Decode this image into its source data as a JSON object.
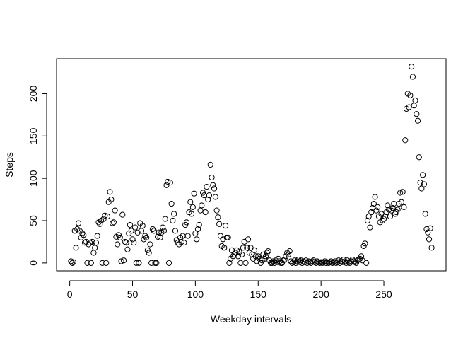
{
  "chart_data": {
    "type": "scatter",
    "xlabel": "Weekday intervals",
    "ylabel": "Steps",
    "color": "#000000",
    "x": [
      1,
      2,
      3,
      4,
      5,
      6,
      7,
      8,
      9,
      10,
      11,
      12,
      13,
      14,
      15,
      16,
      17,
      18,
      19,
      20,
      21,
      22,
      23,
      24,
      25,
      26,
      27,
      28,
      29,
      30,
      31,
      32,
      33,
      34,
      35,
      36,
      37,
      38,
      39,
      40,
      41,
      42,
      43,
      44,
      45,
      46,
      47,
      48,
      49,
      50,
      51,
      52,
      53,
      54,
      55,
      56,
      57,
      58,
      59,
      60,
      61,
      62,
      63,
      64,
      65,
      66,
      67,
      68,
      69,
      70,
      71,
      72,
      73,
      74,
      75,
      76,
      77,
      78,
      79,
      80,
      81,
      82,
      83,
      84,
      85,
      86,
      87,
      88,
      89,
      90,
      91,
      92,
      93,
      94,
      95,
      96,
      97,
      98,
      99,
      100,
      101,
      102,
      103,
      104,
      105,
      106,
      107,
      108,
      109,
      110,
      111,
      112,
      113,
      114,
      115,
      116,
      117,
      118,
      119,
      120,
      121,
      122,
      123,
      124,
      125,
      126,
      127,
      128,
      129,
      130,
      131,
      132,
      133,
      134,
      135,
      136,
      137,
      138,
      139,
      140,
      141,
      142,
      143,
      144,
      145,
      146,
      147,
      148,
      149,
      150,
      151,
      152,
      153,
      154,
      155,
      156,
      157,
      158,
      159,
      160,
      161,
      162,
      163,
      164,
      165,
      166,
      167,
      168,
      169,
      170,
      171,
      172,
      173,
      174,
      175,
      176,
      177,
      178,
      179,
      180,
      181,
      182,
      183,
      184,
      185,
      186,
      187,
      188,
      189,
      190,
      191,
      192,
      193,
      194,
      195,
      196,
      197,
      198,
      199,
      200,
      201,
      202,
      203,
      204,
      205,
      206,
      207,
      208,
      209,
      210,
      211,
      212,
      213,
      214,
      215,
      216,
      217,
      218,
      219,
      220,
      221,
      222,
      223,
      224,
      225,
      226,
      227,
      228,
      229,
      230,
      231,
      232,
      233,
      234,
      235,
      236,
      237,
      238,
      239,
      240,
      241,
      242,
      243,
      244,
      245,
      246,
      247,
      248,
      249,
      250,
      251,
      252,
      253,
      254,
      255,
      256,
      257,
      258,
      259,
      260,
      261,
      262,
      263,
      264,
      265,
      266,
      267,
      268,
      269,
      270,
      271,
      272,
      273,
      274,
      275,
      276,
      277,
      278,
      279,
      280,
      281,
      282,
      283,
      284,
      285,
      286,
      287,
      288
    ],
    "values": [
      2,
      0,
      1,
      38,
      18,
      40,
      47,
      38,
      30,
      35,
      33,
      24,
      25,
      0,
      22,
      24,
      0,
      25,
      12,
      18,
      24,
      32,
      48,
      46,
      50,
      0,
      52,
      56,
      0,
      55,
      72,
      84,
      75,
      47,
      48,
      62,
      31,
      22,
      33,
      30,
      2,
      57,
      3,
      25,
      24,
      16,
      35,
      45,
      38,
      28,
      24,
      42,
      0,
      36,
      0,
      47,
      38,
      44,
      28,
      32,
      30,
      15,
      12,
      22,
      0,
      40,
      38,
      0,
      0,
      31,
      36,
      30,
      36,
      42,
      38,
      52,
      92,
      96,
      0,
      95,
      70,
      50,
      58,
      38,
      27,
      24,
      22,
      30,
      25,
      32,
      24,
      45,
      48,
      32,
      60,
      72,
      58,
      66,
      82,
      35,
      28,
      40,
      45,
      62,
      68,
      83,
      80,
      60,
      90,
      75,
      80,
      116,
      101,
      92,
      88,
      78,
      62,
      54,
      46,
      32,
      20,
      28,
      18,
      44,
      30,
      30,
      0,
      5,
      15,
      8,
      10,
      12,
      15,
      8,
      13,
      0,
      10,
      18,
      25,
      0,
      18,
      28,
      12,
      18,
      10,
      5,
      15,
      8,
      2,
      8,
      5,
      0,
      3,
      10,
      5,
      8,
      12,
      14,
      3,
      0,
      0,
      2,
      0,
      3,
      1,
      5,
      2,
      0,
      0,
      3,
      4,
      8,
      12,
      10,
      14,
      2,
      0,
      1,
      3,
      0,
      2,
      4,
      1,
      3,
      0,
      2,
      1,
      3,
      0,
      2,
      1,
      0,
      2,
      3,
      1,
      0,
      2,
      1,
      0,
      1,
      0,
      1,
      2,
      0,
      1,
      0,
      1,
      2,
      0,
      1,
      2,
      0,
      1,
      3,
      0,
      2,
      1,
      4,
      2,
      0,
      3,
      1,
      0,
      2,
      4,
      2,
      1,
      0,
      3,
      4,
      5,
      8,
      3,
      20,
      23,
      0,
      50,
      55,
      42,
      60,
      65,
      70,
      78,
      62,
      66,
      55,
      48,
      58,
      50,
      52,
      55,
      60,
      68,
      63,
      55,
      62,
      65,
      70,
      58,
      60,
      63,
      70,
      83,
      72,
      84,
      66,
      145,
      182,
      200,
      184,
      198,
      232,
      220,
      186,
      192,
      176,
      168,
      125,
      95,
      88,
      104,
      93,
      58,
      40,
      36,
      28,
      41,
      18
    ],
    "xlim": [
      -10.48,
      299.48
    ],
    "ylim": [
      -9.3,
      241.3
    ],
    "xticks": [
      0,
      50,
      100,
      150,
      200,
      250
    ],
    "yticks": [
      0,
      50,
      100,
      150,
      200
    ]
  }
}
